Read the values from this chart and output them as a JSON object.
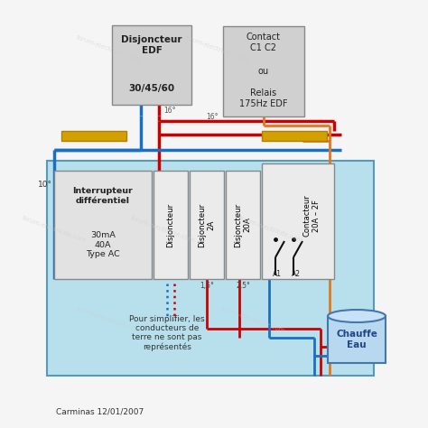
{
  "bg_color": "#ffffff",
  "panel_bg": "#add8e6",
  "panel_border": "#6699cc",
  "box_fill": "#d3d3d3",
  "box_edge": "#888888",
  "bus_yellow": "#d4a000",
  "wire_red": "#cc0000",
  "wire_blue": "#1a6fc4",
  "wire_orange": "#e07820",
  "dot_blue": "#4488cc",
  "dot_red": "#cc2222",
  "title_edf": "Disjoncteur\nEDF\n\n30/45/60",
  "title_contact": "Contact\nC1 C2\nou\nRelais\n175Hz EDF",
  "label_diff": "Interrupteur\ndifférentiel\n30mA\n40A\nType AC",
  "label_disj1": "Disjoncteur",
  "label_disj2": "Disjoncteur\n2A",
  "label_disj3": "Disjoncteur\n20A",
  "label_cont": "Contacteur\n20A – 2F",
  "label_a1": "A1",
  "label_a2": "A2",
  "label_16a": "16°",
  "label_16b": "16°",
  "label_10": "10°",
  "label_15": "1,5°",
  "label_25": "2,5°",
  "label_chauffe": "Chauffe\nEau",
  "footnote": "Pour simplifier, les\nconducteurs de\nterre ne sont pas\nreprésentés",
  "credit": "Carminas 12/01/2007",
  "watermark": "forum-electricite.com"
}
